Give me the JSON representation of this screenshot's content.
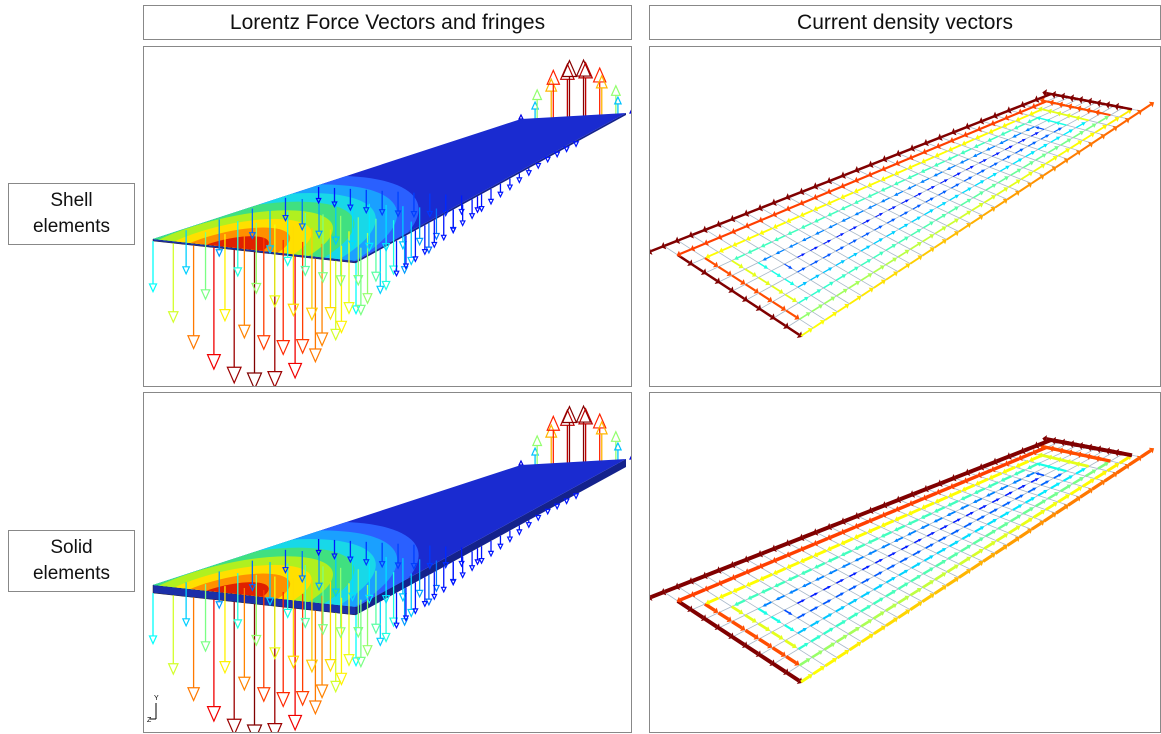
{
  "header": {
    "columns": [
      "Lorentz Force Vectors and fringes",
      "Current density vectors"
    ]
  },
  "rows": [
    {
      "label": "Shell elements"
    },
    {
      "label": "Solid elements"
    }
  ],
  "axis_triad": {
    "y": "Y",
    "z": "Z"
  }
}
